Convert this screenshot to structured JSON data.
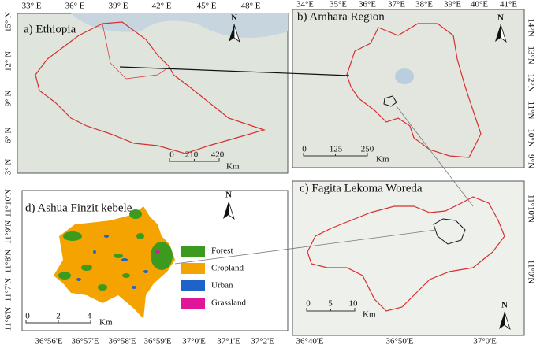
{
  "panels": [
    {
      "title": "a) Ethiopia",
      "north": "N",
      "top_labels": [
        "33° E",
        "36° E",
        "39° E",
        "42° E",
        "45° E",
        "48° E"
      ],
      "left_labels": [
        "15° N",
        "12° N",
        "9° N",
        "6° N",
        "3° N"
      ],
      "scale_labels": [
        "0",
        "210",
        "420"
      ],
      "scale_unit": "Km"
    },
    {
      "title": "b) Amhara Region",
      "north": "N",
      "top_labels": [
        "34°E",
        "35°E",
        "36°E",
        "37°E",
        "38°E",
        "39°E",
        "40°E",
        "41°E"
      ],
      "right_labels": [
        "14°N",
        "13°N",
        "12°N",
        "11°N",
        "10°N",
        "9°N"
      ],
      "scale_labels": [
        "0",
        "125",
        "250"
      ],
      "scale_unit": "Km"
    },
    {
      "title": "c) Fagita Lekoma Woreda",
      "north": "N",
      "right_labels": [
        "11°10'N",
        "11°0'N"
      ],
      "bottom_labels": [
        "36°40'E",
        "36°50'E",
        "37°0'E"
      ],
      "scale_labels": [
        "0",
        "5",
        "10"
      ],
      "scale_unit": "Km"
    },
    {
      "title": "d) Ashua Finzit kebele",
      "north": "N",
      "left_labels": [
        "11°10'N",
        "11°9'N",
        "11°8'N",
        "11°7'N",
        "11°6'N"
      ],
      "bottom_labels": [
        "36°56'E",
        "36°57'E",
        "36°58'E",
        "36°59'E",
        "37°0'E",
        "37°1'E",
        "37°2'E"
      ],
      "scale_labels": [
        "0",
        "2",
        "4"
      ],
      "scale_unit": "Km",
      "legend": [
        {
          "name": "Forest",
          "color": "#3c9a1e"
        },
        {
          "name": "Cropland",
          "color": "#f5a300"
        },
        {
          "name": "Urban",
          "color": "#1e64c8"
        },
        {
          "name": "Grassland",
          "color": "#e0169a"
        }
      ]
    }
  ]
}
